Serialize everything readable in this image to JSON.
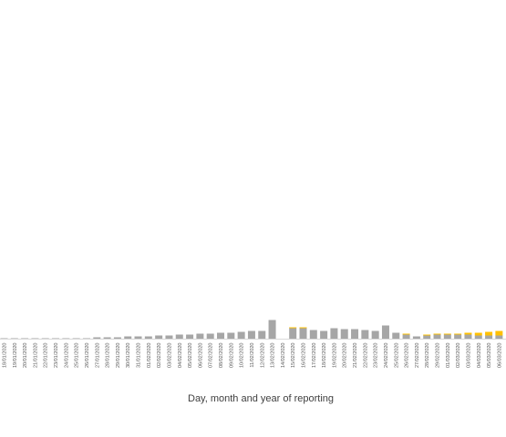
{
  "chart_data": {
    "type": "bar",
    "title": "",
    "xlabel": "Day, month and year of reporting",
    "ylabel": "",
    "stacked": true,
    "grid": false,
    "legend": "none",
    "categories": [
      "18/01/2020",
      "19/01/2020",
      "20/01/2020",
      "21/01/2020",
      "22/01/2020",
      "23/01/2020",
      "24/01/2020",
      "25/01/2020",
      "26/01/2020",
      "27/01/2020",
      "28/01/2020",
      "29/01/2020",
      "30/01/2020",
      "31/01/2020",
      "01/02/2020",
      "02/02/2020",
      "03/02/2020",
      "04/02/2020",
      "05/02/2020",
      "06/02/2020",
      "07/02/2020",
      "08/02/2020",
      "09/02/2020",
      "10/02/2020",
      "11/02/2020",
      "12/02/2020",
      "13/02/2020",
      "14/02/2020",
      "15/02/2020",
      "16/02/2020",
      "17/02/2020",
      "18/02/2020",
      "19/02/2020",
      "20/02/2020",
      "21/02/2020",
      "22/02/2020",
      "23/02/2020",
      "24/02/2020",
      "25/02/2020",
      "26/02/2020",
      "27/02/2020",
      "28/02/2020",
      "29/02/2020",
      "01/03/2020",
      "02/03/2020",
      "03/03/2020",
      "04/03/2020",
      "05/03/2020",
      "06/03/2020"
    ],
    "series": [
      {
        "color": "#a6a6a6",
        "values": [
          1,
          1,
          1,
          1,
          1,
          1,
          1,
          1,
          1,
          2,
          2,
          2,
          3,
          3,
          3,
          4,
          4,
          5,
          5,
          6,
          6,
          7,
          7,
          8,
          9,
          9,
          21,
          0,
          12,
          12,
          10,
          9,
          12,
          11,
          11,
          10,
          9,
          15,
          7,
          5,
          3,
          4,
          5,
          5,
          5,
          5,
          4,
          4,
          4
        ]
      },
      {
        "color": "#ffc000",
        "values": [
          0,
          0,
          0,
          0,
          0,
          0,
          0,
          0,
          0,
          0,
          0,
          0,
          0,
          0,
          0,
          0,
          0,
          0,
          0,
          0,
          0,
          0,
          0,
          0,
          0,
          0,
          0,
          0,
          1,
          1,
          0,
          0,
          0,
          0,
          0,
          0,
          0,
          0,
          0,
          1,
          0,
          1,
          1,
          1,
          1,
          2,
          3,
          4,
          5
        ]
      }
    ]
  }
}
